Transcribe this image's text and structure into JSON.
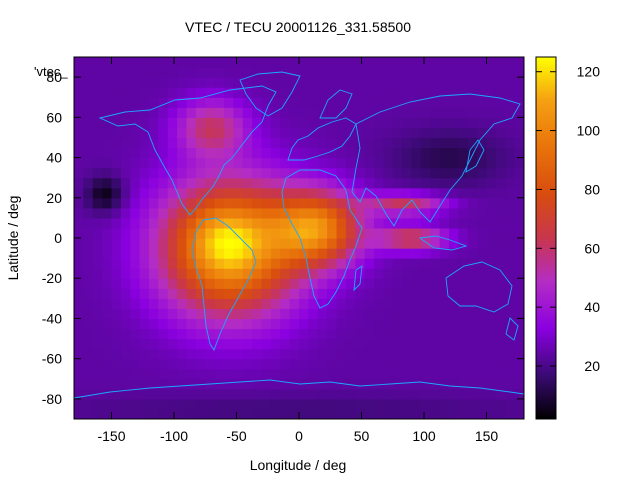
{
  "chart_data": {
    "type": "heatmap",
    "title": "VTEC / TECU 20001126_331.58500",
    "xlabel": "Longitude / deg",
    "ylabel": "Latitude / deg",
    "series_label": "'vtec_",
    "xlim": [
      -180,
      180
    ],
    "ylim": [
      -90,
      90
    ],
    "x_ticks": [
      -150,
      -100,
      -50,
      0,
      50,
      100,
      150
    ],
    "y_ticks": [
      -80,
      -60,
      -40,
      -20,
      0,
      20,
      40,
      60,
      80
    ],
    "colorbar": {
      "range": [
        2,
        125
      ],
      "ticks": [
        20,
        40,
        60,
        80,
        100,
        120
      ]
    },
    "field": {
      "base": 24,
      "bumps": [
        {
          "lon": -55,
          "lat": -5,
          "amp": 88,
          "slon": 55,
          "slat": 33
        },
        {
          "lon": -60,
          "lat": 0,
          "amp": 14,
          "slon": 28,
          "slat": 16
        },
        {
          "lon": 15,
          "lat": 5,
          "amp": 70,
          "slon": 35,
          "slat": 18
        },
        {
          "lon": -70,
          "lat": 55,
          "amp": 35,
          "slon": 28,
          "slat": 14
        },
        {
          "lon": 90,
          "lat": 0,
          "amp": 42,
          "slon": 28,
          "slat": 6
        },
        {
          "lon": 85,
          "lat": 17,
          "amp": 38,
          "slon": 32,
          "slat": 5
        },
        {
          "lon": -155,
          "lat": 22,
          "amp": -20,
          "slon": 15,
          "slat": 9
        },
        {
          "lon": 120,
          "lat": 40,
          "amp": -12,
          "slon": 45,
          "slat": 14
        },
        {
          "lon": 0,
          "lat": -85,
          "amp": -6,
          "slon": 200,
          "slat": 8
        }
      ]
    }
  }
}
